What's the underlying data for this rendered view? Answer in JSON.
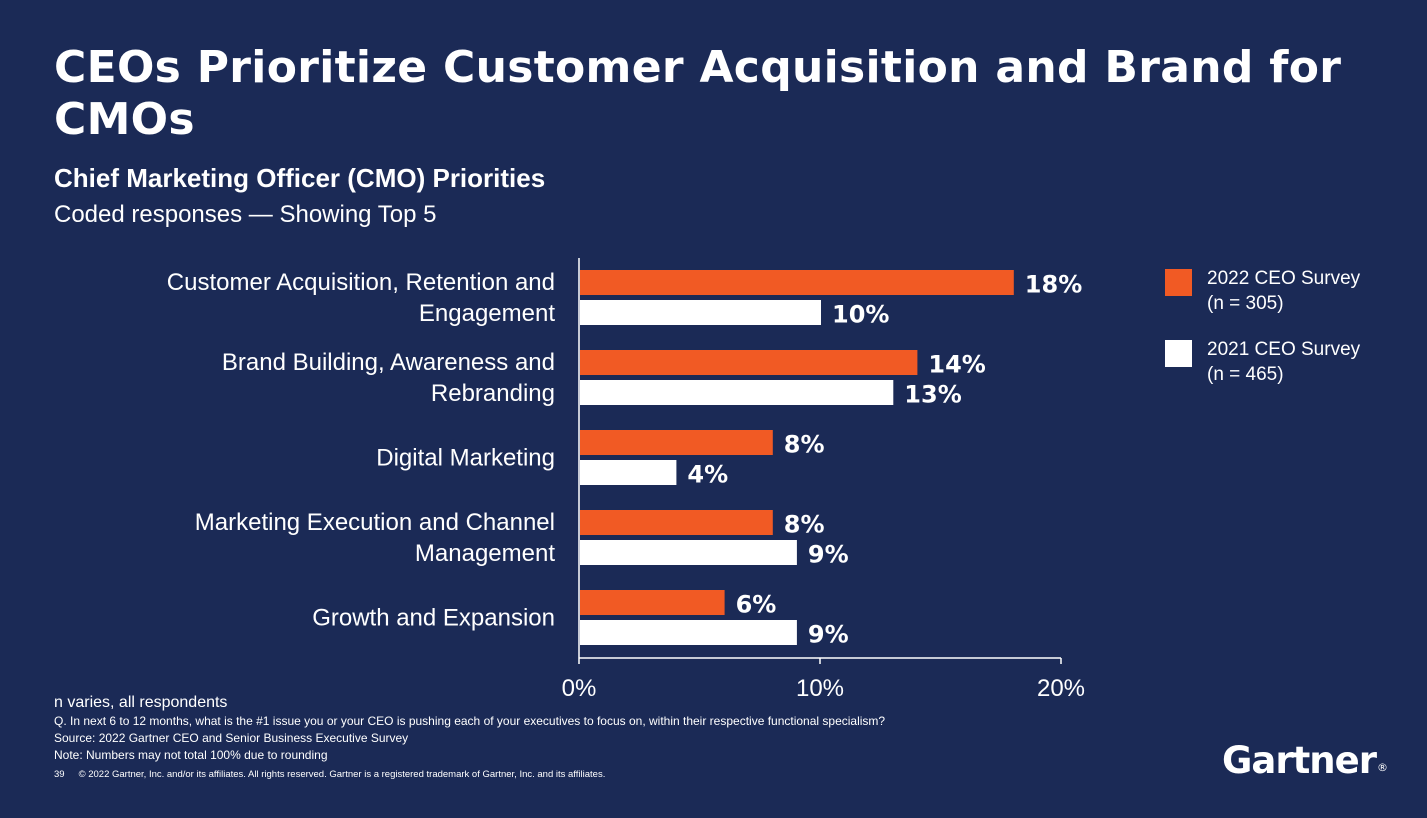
{
  "title": "CEOs Prioritize Customer Acquisition and Brand for CMOs",
  "subtitle": "Chief Marketing Officer (CMO) Priorities",
  "subtitle2": "Coded responses — Showing Top 5",
  "colors": {
    "background": "#1b2a56",
    "series_2022": "#f15a24",
    "series_2021": "#ffffff",
    "text": "#ffffff"
  },
  "legend": [
    {
      "label_line1": "2022 CEO Survey",
      "label_line2": "(n = 305)",
      "color": "#f15a24"
    },
    {
      "label_line1": "2021 CEO Survey",
      "label_line2": "(n = 465)",
      "color": "#ffffff"
    }
  ],
  "chart_data": {
    "type": "bar",
    "orientation": "horizontal",
    "categories": [
      [
        "Customer Acquisition, Retention and",
        "Engagement"
      ],
      [
        "Brand Building, Awareness and",
        "Rebranding"
      ],
      [
        "Digital Marketing"
      ],
      [
        "Marketing Execution and Channel",
        "Management"
      ],
      [
        "Growth and Expansion"
      ]
    ],
    "series": [
      {
        "name": "2022 CEO Survey (n = 305)",
        "color": "#f15a24",
        "values": [
          18,
          14,
          8,
          8,
          6
        ],
        "labels": [
          "18%",
          "14%",
          "8%",
          "8%",
          "6%"
        ]
      },
      {
        "name": "2021 CEO Survey (n = 465)",
        "color": "#ffffff",
        "values": [
          10,
          13,
          4,
          9,
          9
        ],
        "labels": [
          "10%",
          "13%",
          "4%",
          "9%",
          "9%"
        ]
      }
    ],
    "xlim": [
      0,
      20
    ],
    "xticks": [
      "0%",
      "10%",
      "20%"
    ],
    "grid": false
  },
  "footer": {
    "n_note": "n varies, all respondents",
    "question": "Q. In next 6 to 12 months, what is the #1 issue you or your CEO is pushing each of your executives to focus on, within their respective functional specialism?",
    "source": "Source: 2022 Gartner CEO and Senior Business Executive Survey",
    "note": "Note: Numbers may not total 100% due to rounding",
    "page": "39",
    "copyright": "© 2022 Gartner, Inc. and/or its affiliates. All rights reserved. Gartner is a registered trademark of Gartner, Inc. and its affiliates."
  },
  "logo": {
    "text": "Gartner",
    "mark": "®"
  }
}
